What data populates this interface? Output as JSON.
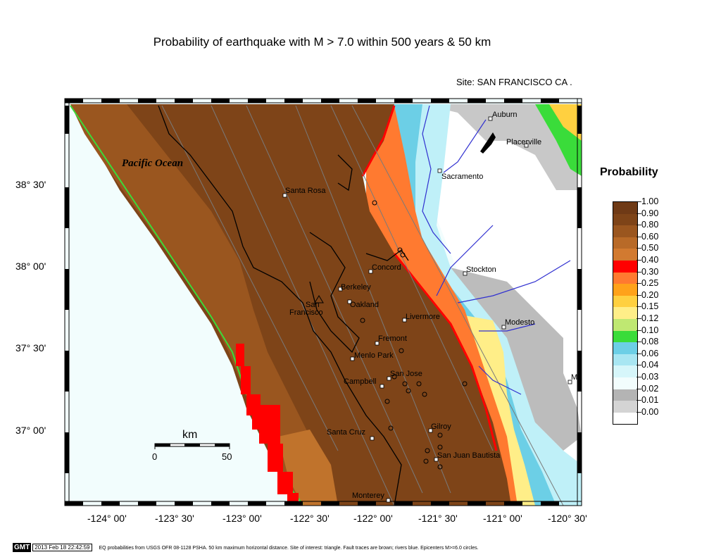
{
  "title": "Probability of earthquake with M > 7.0 within 500 years & 50 km",
  "site": "Site: SAN  FRANCISCO CA .",
  "ocean_label": "Pacific Ocean",
  "lat_labels": [
    "38° 30'",
    "38° 00'",
    "37° 30'",
    "37° 00'"
  ],
  "lon_labels": [
    "-124° 00'",
    "-123° 30'",
    "-123° 00'",
    "-122° 30'",
    "-122° 00'",
    "-121° 30'",
    "-121° 00'",
    "-120° 30'"
  ],
  "scale_bar": {
    "unit": "km",
    "min": "0",
    "max": "50"
  },
  "legend": {
    "title": "Probability",
    "entries": [
      {
        "label": "1.00",
        "color": "#6f3a16"
      },
      {
        "label": "0.90",
        "color": "#7e4418"
      },
      {
        "label": "0.80",
        "color": "#9a561f"
      },
      {
        "label": "0.60",
        "color": "#b86a28"
      },
      {
        "label": "0.50",
        "color": "#d27a30"
      },
      {
        "label": "0.40",
        "color": "#ff0000"
      },
      {
        "label": "0.30",
        "color": "#ff7a30"
      },
      {
        "label": "0.25",
        "color": "#ffa21a"
      },
      {
        "label": "0.20",
        "color": "#ffd040"
      },
      {
        "label": "0.15",
        "color": "#ffee88"
      },
      {
        "label": "0.12",
        "color": "#bfe872"
      },
      {
        "label": "0.10",
        "color": "#3adc3a"
      },
      {
        "label": "0.08",
        "color": "#6ccfe6"
      },
      {
        "label": "0.06",
        "color": "#a8e6f2"
      },
      {
        "label": "0.04",
        "color": "#d6f6fa"
      },
      {
        "label": "0.03",
        "color": "#f2fdfd"
      },
      {
        "label": "0.02",
        "color": "#b4b4b4"
      },
      {
        "label": "0.01",
        "color": "#d4d4d4"
      },
      {
        "label": "0.00",
        "color": "#ffffff"
      }
    ]
  },
  "cities": [
    {
      "name": "Auburn"
    },
    {
      "name": "Placerville"
    },
    {
      "name": "Sacramento"
    },
    {
      "name": "Santa Rosa"
    },
    {
      "name": "Concord"
    },
    {
      "name": "Stockton"
    },
    {
      "name": "Berkeley"
    },
    {
      "name": "Oakland"
    },
    {
      "name": "San"
    },
    {
      "name": "Francisco"
    },
    {
      "name": "Livermore"
    },
    {
      "name": "Modesto"
    },
    {
      "name": "Fremont"
    },
    {
      "name": "Menlo Park"
    },
    {
      "name": "San Jose"
    },
    {
      "name": "Campbell"
    },
    {
      "name": "M"
    },
    {
      "name": "Gilroy"
    },
    {
      "name": "Santa Cruz"
    },
    {
      "name": "San Juan Bautista"
    },
    {
      "name": "Monterey"
    }
  ],
  "footer": {
    "badge": "GMT",
    "timestamp": "2013 Feb 18 22:42:59",
    "caption": "EQ probabilities from USGS OFR 08-1128 PSHA. 50 km maximum horizontal distance. Site of interest: triangle. Fault traces are brown; rivers blue. Epicenters M>=6.0 circles."
  },
  "colors": {
    "ocean": "#f2fdfd",
    "frame": "#000000",
    "river": "#3030d0",
    "fault": "#808080"
  }
}
